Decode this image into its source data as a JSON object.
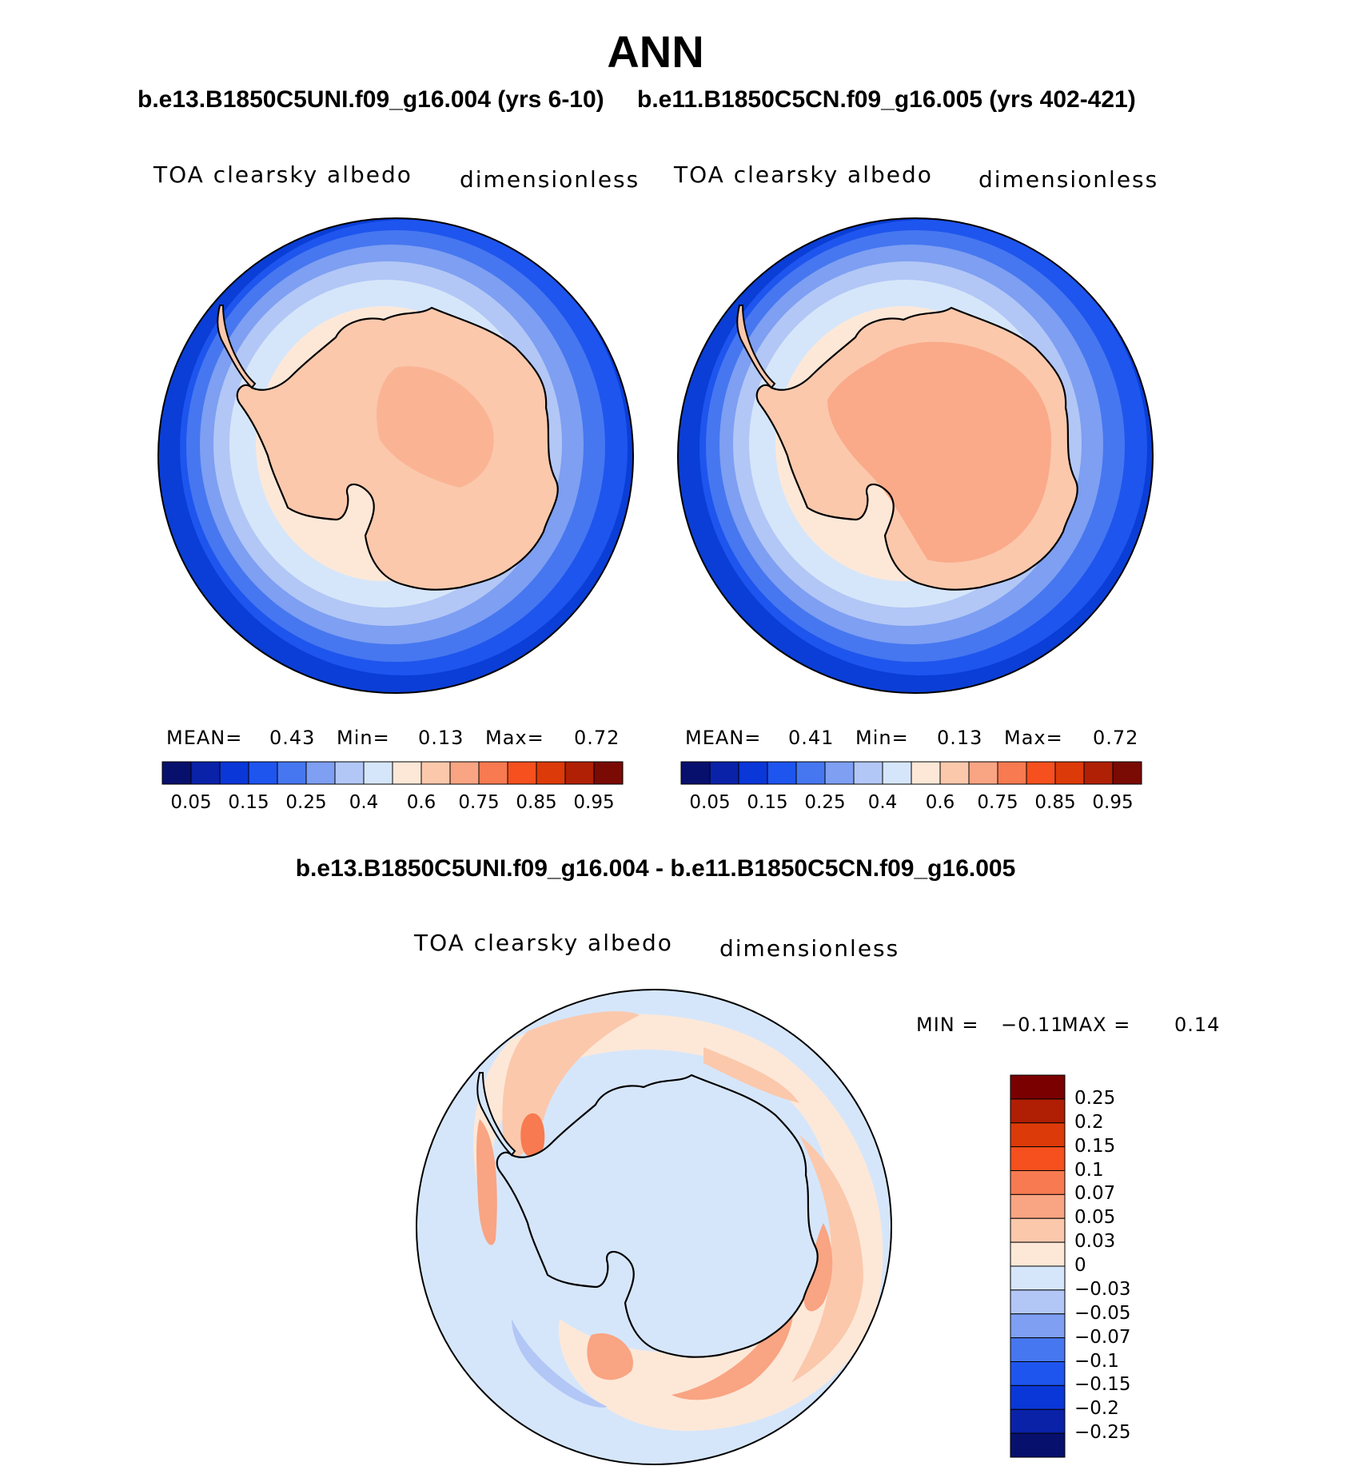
{
  "title": "ANN",
  "panels": [
    {
      "case": "b.e13.B1850C5UNI.f09_g16.004 (yrs 6-10)",
      "variable": "TOA clearsky albedo",
      "units": "dimensionless",
      "stats": {
        "mean_label": "MEAN=",
        "mean": "0.43",
        "min_label": "Min=",
        "min": "0.13",
        "max_label": "Max=",
        "max": "0.72"
      }
    },
    {
      "case": "b.e11.B1850C5CN.f09_g16.005 (yrs 402-421)",
      "variable": "TOA clearsky albedo",
      "units": "dimensionless",
      "stats": {
        "mean_label": "MEAN=",
        "mean": "0.41",
        "min_label": "Min=",
        "min": "0.13",
        "max_label": "Max=",
        "max": "0.72"
      }
    }
  ],
  "colorbar": {
    "labels": [
      "0.05",
      "0.15",
      "0.25",
      "0.4",
      "0.6",
      "0.75",
      "0.85",
      "0.95"
    ],
    "colors": [
      "#08106e",
      "#0a22a8",
      "#0a37d8",
      "#1e55ee",
      "#4677f0",
      "#7e9ff2",
      "#b2c7f6",
      "#d6e6fa",
      "#fde8d8",
      "#fbc8ac",
      "#f9a482",
      "#f77a50",
      "#f5501e",
      "#dc3a08",
      "#b02004",
      "#7a0a04"
    ]
  },
  "difference": {
    "title": "b.e13.B1850C5UNI.f09_g16.004 - b.e11.B1850C5CN.f09_g16.005",
    "variable": "TOA clearsky albedo",
    "units": "dimensionless",
    "min_label": "MIN =",
    "min": "−0.11",
    "max_label": "MAX =",
    "max": "0.14",
    "levels": [
      "0.25",
      "0.2",
      "0.15",
      "0.1",
      "0.07",
      "0.05",
      "0.03",
      "0",
      "−0.03",
      "−0.05",
      "−0.07",
      "−0.1",
      "−0.15",
      "−0.2",
      "−0.25"
    ],
    "colors": [
      "#7a0000",
      "#b01e04",
      "#dc3a08",
      "#f5501e",
      "#f77a50",
      "#f9a482",
      "#fbc8ac",
      "#fde8d8",
      "#d6e6fa",
      "#b2c7f6",
      "#7e9ff2",
      "#4677f0",
      "#1e55ee",
      "#0a37d8",
      "#0a22a8",
      "#08106e"
    ]
  },
  "colors": {
    "ocean_deep": "#0a3ed6",
    "ocean_mid": "#1e55ee",
    "ocean_light": "#4677f0",
    "ice_1": "#7e9ff2",
    "ice_2": "#b2c7f6",
    "ice_3": "#d6e6fa",
    "land_edge": "#fde8d8",
    "land": "#fbc8ac",
    "land_high": "#f9a482",
    "diff_base": "#d6e6fa",
    "diff_pos1": "#fde8d8",
    "diff_pos2": "#fbc8ac",
    "diff_pos3": "#f9a482",
    "diff_pos4": "#f77a50"
  }
}
